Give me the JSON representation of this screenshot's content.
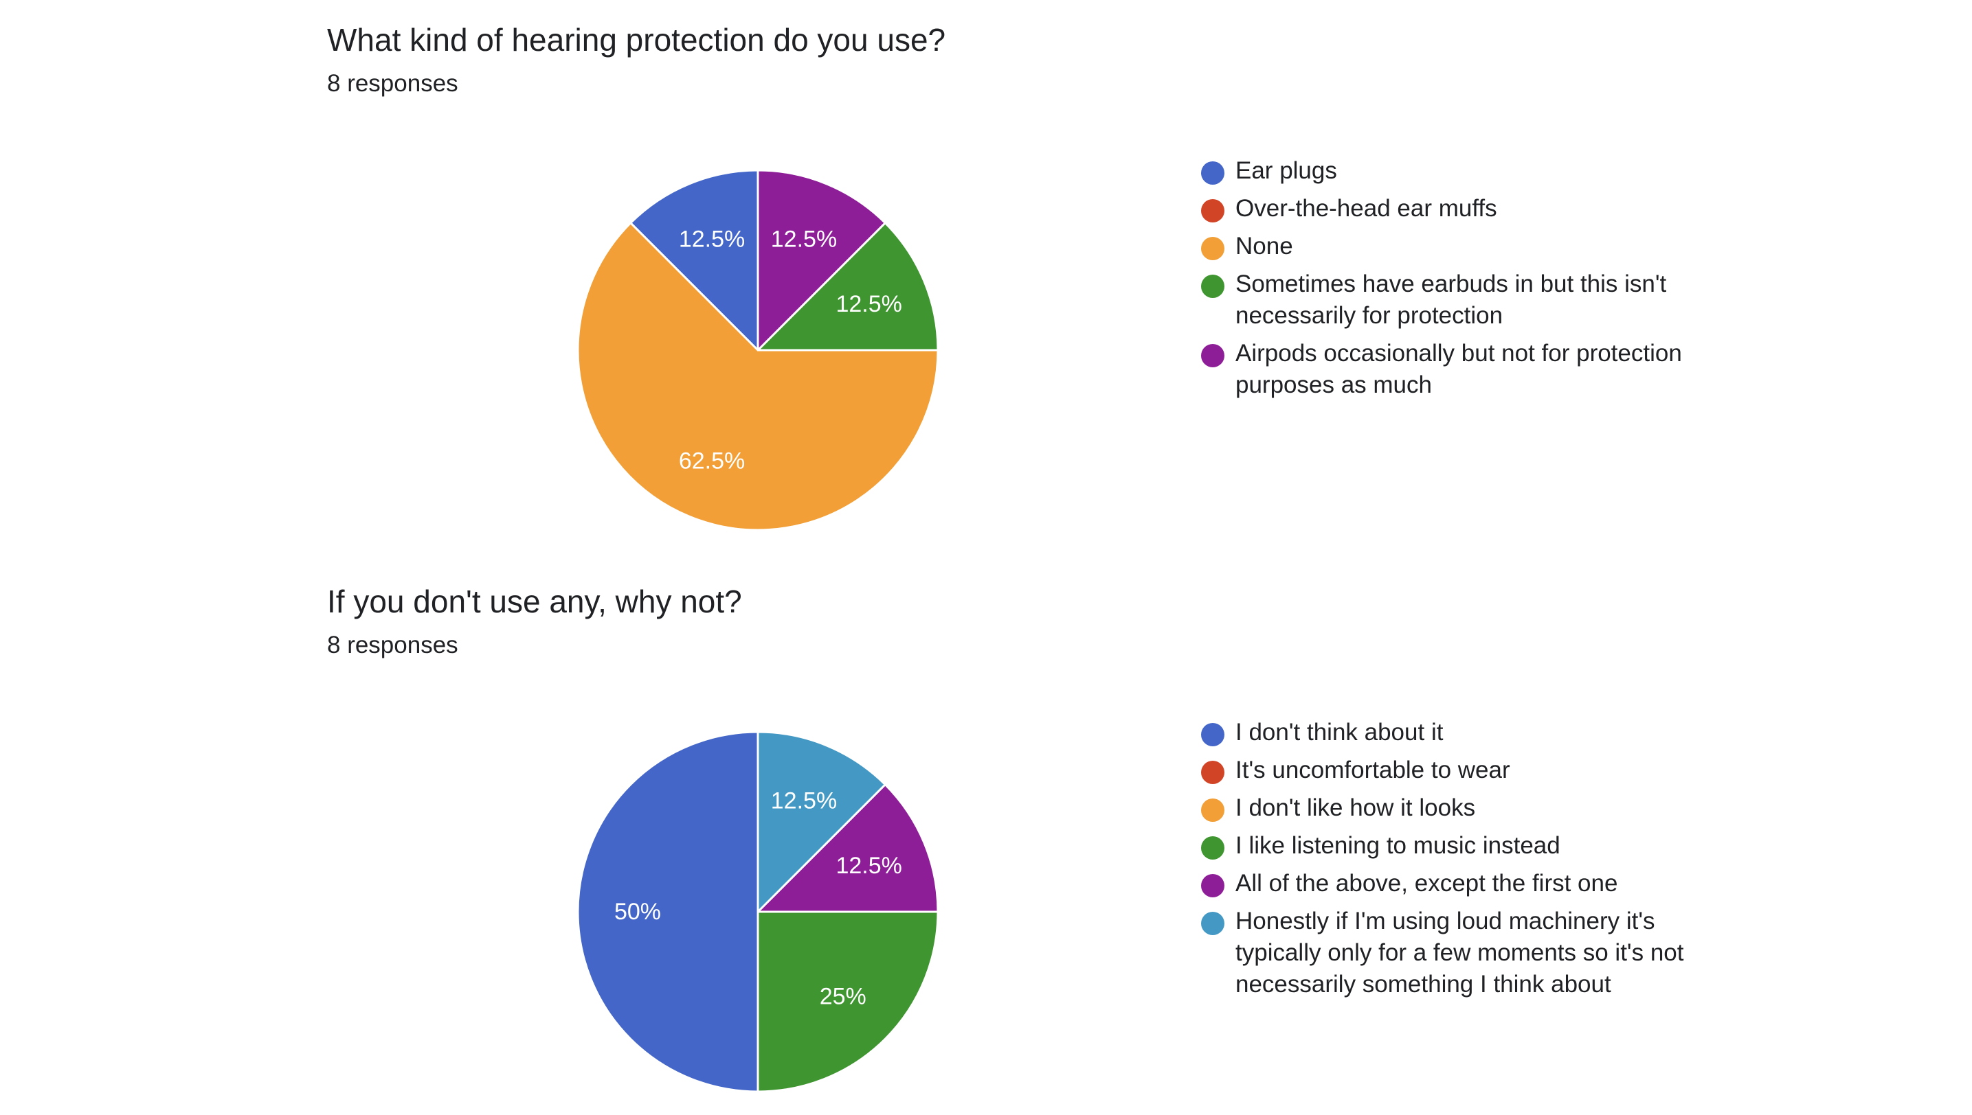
{
  "chart_data": [
    {
      "type": "pie",
      "title": "What kind of hearing protection do you use?",
      "subtitle": "8 responses",
      "legend_position": "right",
      "categories": [
        "Ear plugs",
        "Over-the-head ear muffs",
        "None",
        "Sometimes have earbuds in but this isn't necessarily for protection",
        "Airpods occasionally but not for protection purposes as much"
      ],
      "values": [
        12.5,
        0,
        62.5,
        12.5,
        12.5
      ],
      "value_labels": [
        "12.5%",
        "",
        "62.5%",
        "12.5%",
        "12.5%"
      ],
      "colors": [
        "#4366c8",
        "#d24426",
        "#f19f36",
        "#3f9530",
        "#8e1e97"
      ]
    },
    {
      "type": "pie",
      "title": "If you don't use any, why not?",
      "subtitle": "8 responses",
      "legend_position": "right",
      "categories": [
        "I don't think about it",
        "It's uncomfortable to wear",
        "I don't like how it looks",
        "I like listening to music instead",
        "All of the above, except the first one",
        "Honestly if I'm using loud machinery it's typically only for a few moments so it's not necessarily something I think about"
      ],
      "values": [
        50,
        0,
        0,
        25,
        12.5,
        12.5
      ],
      "value_labels": [
        "50%",
        "",
        "",
        "25%",
        "12.5%",
        "12.5%"
      ],
      "colors": [
        "#4366c8",
        "#d24426",
        "#f19f36",
        "#3f9530",
        "#8e1e97",
        "#4499c4"
      ]
    }
  ]
}
